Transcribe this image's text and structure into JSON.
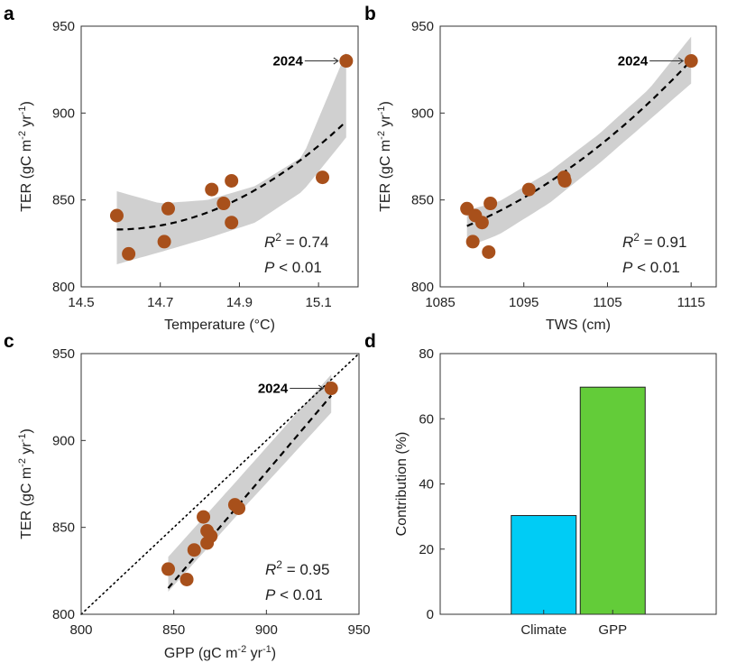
{
  "chart_data": [
    {
      "panel": "a",
      "type": "scatter",
      "xlabel": "Temperature (°C)",
      "ylabel": "TER (gC m-2 yr-1)",
      "xlim": [
        14.5,
        15.2
      ],
      "ylim": [
        800,
        950
      ],
      "xticks": [
        14.5,
        14.7,
        14.9,
        15.1
      ],
      "xtick_labels": [
        "14.5",
        "14.7",
        "14.9",
        "15.1"
      ],
      "yticks": [
        800,
        850,
        900,
        950
      ],
      "ytick_labels": [
        "800",
        "850",
        "900",
        "950"
      ],
      "points": [
        {
          "x": 14.59,
          "y": 841
        },
        {
          "x": 14.62,
          "y": 819
        },
        {
          "x": 14.71,
          "y": 826
        },
        {
          "x": 14.72,
          "y": 845
        },
        {
          "x": 14.83,
          "y": 856
        },
        {
          "x": 14.86,
          "y": 848
        },
        {
          "x": 14.88,
          "y": 861
        },
        {
          "x": 14.88,
          "y": 837
        },
        {
          "x": 15.11,
          "y": 863
        },
        {
          "x": 15.17,
          "y": 930
        }
      ],
      "fit": {
        "form": "quadratic",
        "x_range": [
          14.59,
          15.17
        ],
        "coef": [
          833,
          0.54,
          184
        ]
      },
      "band": {
        "upper": [
          855,
          848,
          850,
          858,
          875,
          935
        ],
        "lower": [
          813,
          820,
          828,
          837,
          855,
          886
        ],
        "x": [
          14.59,
          14.7,
          14.82,
          14.94,
          15.06,
          15.17
        ]
      },
      "highlight": {
        "label": "2024",
        "x": 15.17,
        "y": 930
      },
      "stats": {
        "r2_label": "R",
        "r2_sup": "2",
        "r2_value": " = 0.74",
        "p_label": "P",
        "p_value": " < 0.01"
      },
      "grid": false
    },
    {
      "panel": "b",
      "type": "scatter",
      "xlabel": "TWS (cm)",
      "ylabel": "TER (gC m-2 yr-1)",
      "xlim": [
        1085,
        1118
      ],
      "ylim": [
        800,
        950
      ],
      "xticks": [
        1085,
        1095,
        1105,
        1115
      ],
      "xtick_labels": [
        "1085",
        "1095",
        "1105",
        "1115"
      ],
      "yticks": [
        800,
        850,
        900,
        950
      ],
      "ytick_labels": [
        "800",
        "850",
        "900",
        "950"
      ],
      "points": [
        {
          "x": 1088.2,
          "y": 845
        },
        {
          "x": 1088.9,
          "y": 826
        },
        {
          "x": 1089.2,
          "y": 841
        },
        {
          "x": 1090.0,
          "y": 837
        },
        {
          "x": 1090.8,
          "y": 820
        },
        {
          "x": 1091.0,
          "y": 848
        },
        {
          "x": 1095.6,
          "y": 856
        },
        {
          "x": 1099.8,
          "y": 863
        },
        {
          "x": 1099.9,
          "y": 861
        },
        {
          "x": 1115.0,
          "y": 930
        }
      ],
      "fit": {
        "form": "quadratic",
        "x_range": [
          1088.2,
          1115.0
        ],
        "coef": [
          835,
          2.0,
          0.058
        ]
      },
      "band": {
        "upper": [
          844,
          849,
          866,
          888,
          914,
          944
        ],
        "lower": [
          823,
          830,
          848,
          871,
          896,
          917
        ],
        "x": [
          1088.2,
          1092,
          1098,
          1104,
          1110,
          1115
        ]
      },
      "highlight": {
        "label": "2024",
        "x": 1115.0,
        "y": 930
      },
      "stats": {
        "r2_label": "R",
        "r2_sup": "2",
        "r2_value": " = 0.91",
        "p_label": "P",
        "p_value": " < 0.01"
      },
      "grid": false
    },
    {
      "panel": "c",
      "type": "scatter",
      "xlabel": "GPP (gC m-2 yr-1)",
      "ylabel": "TER (gC m-2 yr-1)",
      "xlim": [
        800,
        950
      ],
      "ylim": [
        800,
        950
      ],
      "xticks": [
        800,
        850,
        900,
        950
      ],
      "xtick_labels": [
        "800",
        "850",
        "900",
        "950"
      ],
      "yticks": [
        800,
        850,
        900,
        950
      ],
      "ytick_labels": [
        "800",
        "850",
        "900",
        "950"
      ],
      "points": [
        {
          "x": 847,
          "y": 826
        },
        {
          "x": 857,
          "y": 820
        },
        {
          "x": 861,
          "y": 837
        },
        {
          "x": 866,
          "y": 856
        },
        {
          "x": 868,
          "y": 841
        },
        {
          "x": 868,
          "y": 848
        },
        {
          "x": 870,
          "y": 845
        },
        {
          "x": 883,
          "y": 863
        },
        {
          "x": 885,
          "y": 861
        },
        {
          "x": 935,
          "y": 930
        }
      ],
      "fit": {
        "form": "linear",
        "x_range": [
          847,
          935
        ],
        "coef": [
          815,
          1.26
        ]
      },
      "band": {
        "upper": [
          833,
          878,
          938
        ],
        "lower": [
          813,
          858,
          916
        ],
        "x": [
          847,
          885,
          935
        ]
      },
      "one_to_one": true,
      "highlight": {
        "label": "2024",
        "x": 935,
        "y": 930
      },
      "stats": {
        "r2_label": "R",
        "r2_sup": "2",
        "r2_value": " = 0.95",
        "p_label": "P",
        "p_value": " < 0.01"
      },
      "grid": false
    },
    {
      "panel": "d",
      "type": "bar",
      "ylabel": "Contribution (%)",
      "categories": [
        "Climate",
        "GPP"
      ],
      "values": [
        30.3,
        69.7
      ],
      "colors": [
        "#00ccf5",
        "#63cc39"
      ],
      "ylim": [
        0,
        80
      ],
      "yticks": [
        0,
        20,
        40,
        60,
        80
      ],
      "ytick_labels": [
        "0",
        "20",
        "40",
        "60",
        "80"
      ],
      "grid": false
    }
  ],
  "colors": {
    "point": "#a8501b",
    "band": "#d0d0d0",
    "fit": "#000000"
  }
}
